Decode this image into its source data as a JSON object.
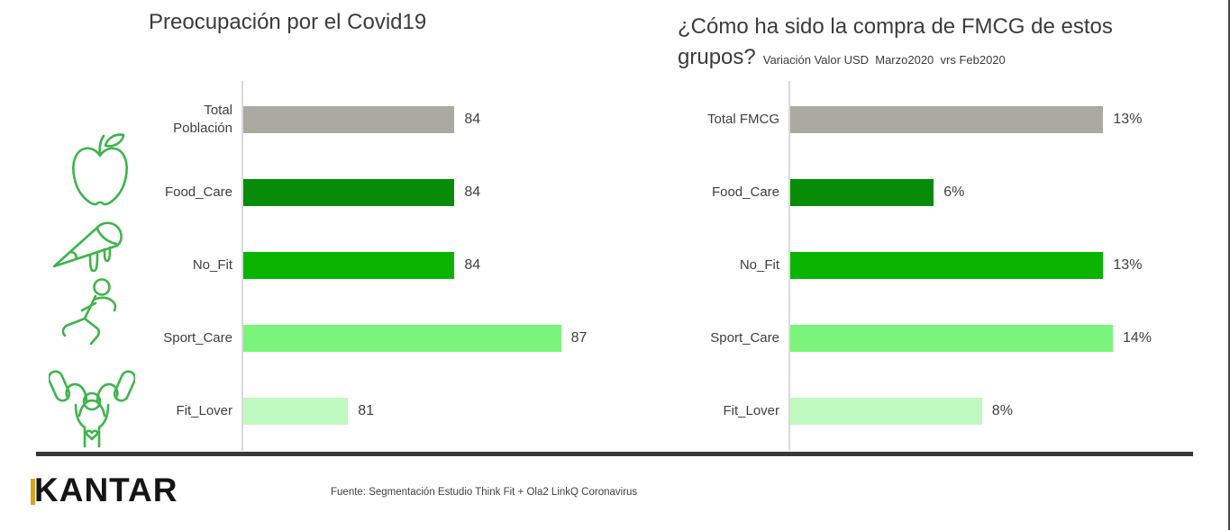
{
  "chart_data": [
    {
      "type": "bar",
      "orientation": "horizontal",
      "title": "Preocupación por el Covid19",
      "categories": [
        "Total\nPoblación",
        "Food_Care",
        "No_Fit",
        "Sport_Care",
        "Fit_Lover"
      ],
      "values": [
        84,
        84,
        84,
        87,
        81
      ],
      "value_labels": [
        "84",
        "84",
        "84",
        "87",
        "81"
      ],
      "xlim": [
        78,
        88
      ],
      "bar_colors": [
        "#abaaa0",
        "#068c06",
        "#0ab400",
        "#7bf47b",
        "#c0fac0"
      ],
      "grid": false,
      "legend": "none"
    },
    {
      "type": "bar",
      "orientation": "horizontal",
      "title": "¿Cómo ha sido la compra de FMCG de estos grupos?",
      "subtitle": "Variación Valor USD  Marzo2020  vrs Feb2020",
      "categories": [
        "Total FMCG",
        "Food_Care",
        "No_Fit",
        "Sport_Care",
        "Fit_Lover"
      ],
      "values": [
        13,
        6,
        13,
        14,
        8
      ],
      "value_labels": [
        "13%",
        "6%",
        "13%",
        "14%",
        "8%"
      ],
      "xlim": [
        0,
        15
      ],
      "bar_colors": [
        "#abaaa0",
        "#068c06",
        "#0ab400",
        "#7bf47b",
        "#c0fac0"
      ],
      "grid": false,
      "legend": "none"
    }
  ],
  "icons": [
    "apple-icon",
    "pizza-slice-icon",
    "runner-icon",
    "weightlifter-icon"
  ],
  "footer": {
    "logo_text": "KANTAR",
    "source": "Fuente: Segmentación Estudio Think Fit + Ola2 LinkQ Coronavirus"
  },
  "colors": {
    "icon_green": "#3cb44a",
    "bar_gray": "#abaaa0",
    "bar_dark_green": "#068c06",
    "bar_green": "#0ab400",
    "bar_light_green": "#7bf47b",
    "bar_pale_green": "#c0fac0",
    "text": "#3f3f3f",
    "axis_line": "#d9d9d9",
    "divider": "#383838",
    "logo_gold": "#d4a41e"
  }
}
